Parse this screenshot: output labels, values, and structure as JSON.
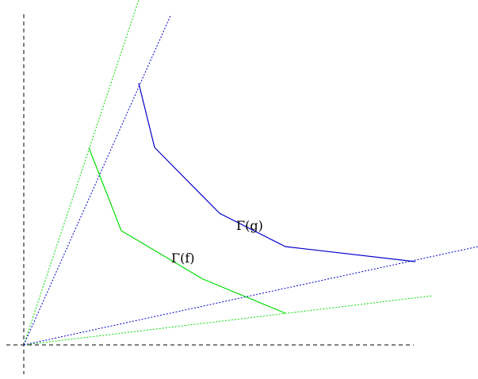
{
  "labels": {
    "f_graph": "Γ(f)",
    "g_graph": "Γ(g)"
  },
  "colors": {
    "f": "#00dd00",
    "g": "#0000cc",
    "axes": "#000000",
    "background": "#ffffff"
  }
}
